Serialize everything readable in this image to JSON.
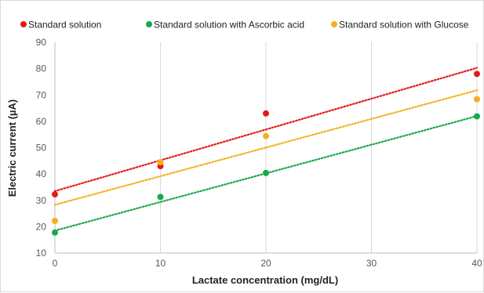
{
  "chart_data": {
    "type": "scatter",
    "xlabel": "Lactate concentration (mg/dL)",
    "ylabel": "Electric current (µA)",
    "xlim": [
      0,
      40
    ],
    "ylim": [
      10,
      90
    ],
    "xticks": [
      0,
      10,
      20,
      30,
      40
    ],
    "yticks": [
      10,
      20,
      30,
      40,
      50,
      60,
      70,
      80,
      90
    ],
    "grid": "vertical",
    "legend_position": "top",
    "trendline": "linear, dotted",
    "series": [
      {
        "name": "Standard solution",
        "color": "#e31a1c",
        "x": [
          0,
          10,
          20,
          40
        ],
        "y": [
          32.3,
          43,
          63,
          78
        ],
        "trend": [
          33.5,
          80.3
        ]
      },
      {
        "name": "Standard solution with Ascorbic acid",
        "color": "#1aa84b",
        "x": [
          0,
          10,
          20,
          40
        ],
        "y": [
          17.8,
          31.3,
          40.4,
          61.9
        ],
        "trend": [
          18.5,
          62
        ]
      },
      {
        "name": "Standard solution with Glucose",
        "color": "#f4b01b",
        "x": [
          0,
          10,
          20,
          40
        ],
        "y": [
          22.2,
          44.5,
          54.4,
          68.4
        ],
        "trend": [
          28.3,
          71.8
        ]
      }
    ]
  }
}
